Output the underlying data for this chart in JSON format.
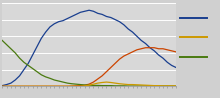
{
  "background_color": "#d0d0d0",
  "plot_bg_color": "#d8d8d8",
  "grid_color": "#ffffff",
  "x_years": [
    1980,
    1981,
    1982,
    1983,
    1984,
    1985,
    1986,
    1987,
    1988,
    1989,
    1990,
    1991,
    1992,
    1993,
    1994,
    1995,
    1996,
    1997,
    1998,
    1999,
    2000,
    2001,
    2002,
    2003,
    2004,
    2005,
    2006,
    2007,
    2008,
    2009,
    2010,
    2011,
    2012,
    2013,
    2014,
    2015,
    2016,
    2017,
    2018,
    2019,
    2020
  ],
  "blue_values": [
    0.3,
    0.8,
    1.5,
    3.0,
    5.0,
    8.0,
    11.0,
    15.0,
    19.0,
    23.0,
    26.0,
    28.5,
    30.0,
    31.0,
    31.5,
    32.5,
    33.5,
    34.5,
    35.5,
    36.0,
    36.5,
    36.0,
    35.0,
    34.5,
    33.5,
    33.0,
    32.0,
    31.0,
    29.5,
    27.5,
    26.0,
    24.0,
    22.0,
    20.5,
    18.5,
    17.0,
    15.0,
    13.5,
    11.5,
    10.0,
    9.0
  ],
  "orange_values": [
    0.0,
    0.0,
    0.0,
    0.0,
    0.0,
    0.0,
    0.0,
    0.0,
    0.0,
    0.0,
    0.0,
    0.0,
    0.0,
    0.0,
    0.0,
    0.0,
    0.1,
    0.2,
    0.3,
    0.5,
    1.0,
    2.0,
    3.5,
    5.0,
    7.0,
    9.0,
    11.0,
    13.0,
    14.5,
    15.5,
    16.5,
    17.5,
    18.0,
    18.5,
    18.5,
    18.5,
    18.0,
    18.0,
    17.5,
    17.0,
    16.5
  ],
  "green_values": [
    22.0,
    20.0,
    18.0,
    16.0,
    13.5,
    11.5,
    10.0,
    8.5,
    7.0,
    5.5,
    4.5,
    3.8,
    3.0,
    2.5,
    2.0,
    1.5,
    1.2,
    1.0,
    0.8,
    0.6,
    0.5,
    0.4,
    0.4,
    0.3,
    0.3,
    0.3,
    0.2,
    0.2,
    0.2,
    0.1,
    0.1,
    0.1,
    0.1,
    0.1,
    0.1,
    0.1,
    0.1,
    0.1,
    0.1,
    0.1,
    0.1
  ],
  "yellow_values": [
    0.0,
    0.0,
    0.0,
    0.0,
    0.0,
    0.0,
    0.0,
    0.0,
    0.0,
    0.0,
    0.0,
    0.0,
    0.0,
    0.0,
    0.0,
    0.0,
    0.0,
    0.0,
    0.0,
    0.2,
    0.5,
    1.0,
    1.5,
    1.8,
    2.0,
    1.8,
    1.5,
    1.2,
    1.0,
    0.8,
    0.8,
    0.7,
    0.6,
    0.5,
    0.4,
    0.3,
    0.3,
    0.2,
    0.2,
    0.2,
    0.2
  ],
  "blue_color": "#1a3f8f",
  "orange_color": "#cc4400",
  "green_color": "#4a7a10",
  "yellow_color": "#cc9900",
  "ylim": [
    0,
    40
  ],
  "xlim": [
    1980,
    2020
  ],
  "linewidth": 0.9,
  "legend_colors": [
    "#1a3f8f",
    "#cc9900",
    "#4a7a10"
  ],
  "n_yticks": 5
}
